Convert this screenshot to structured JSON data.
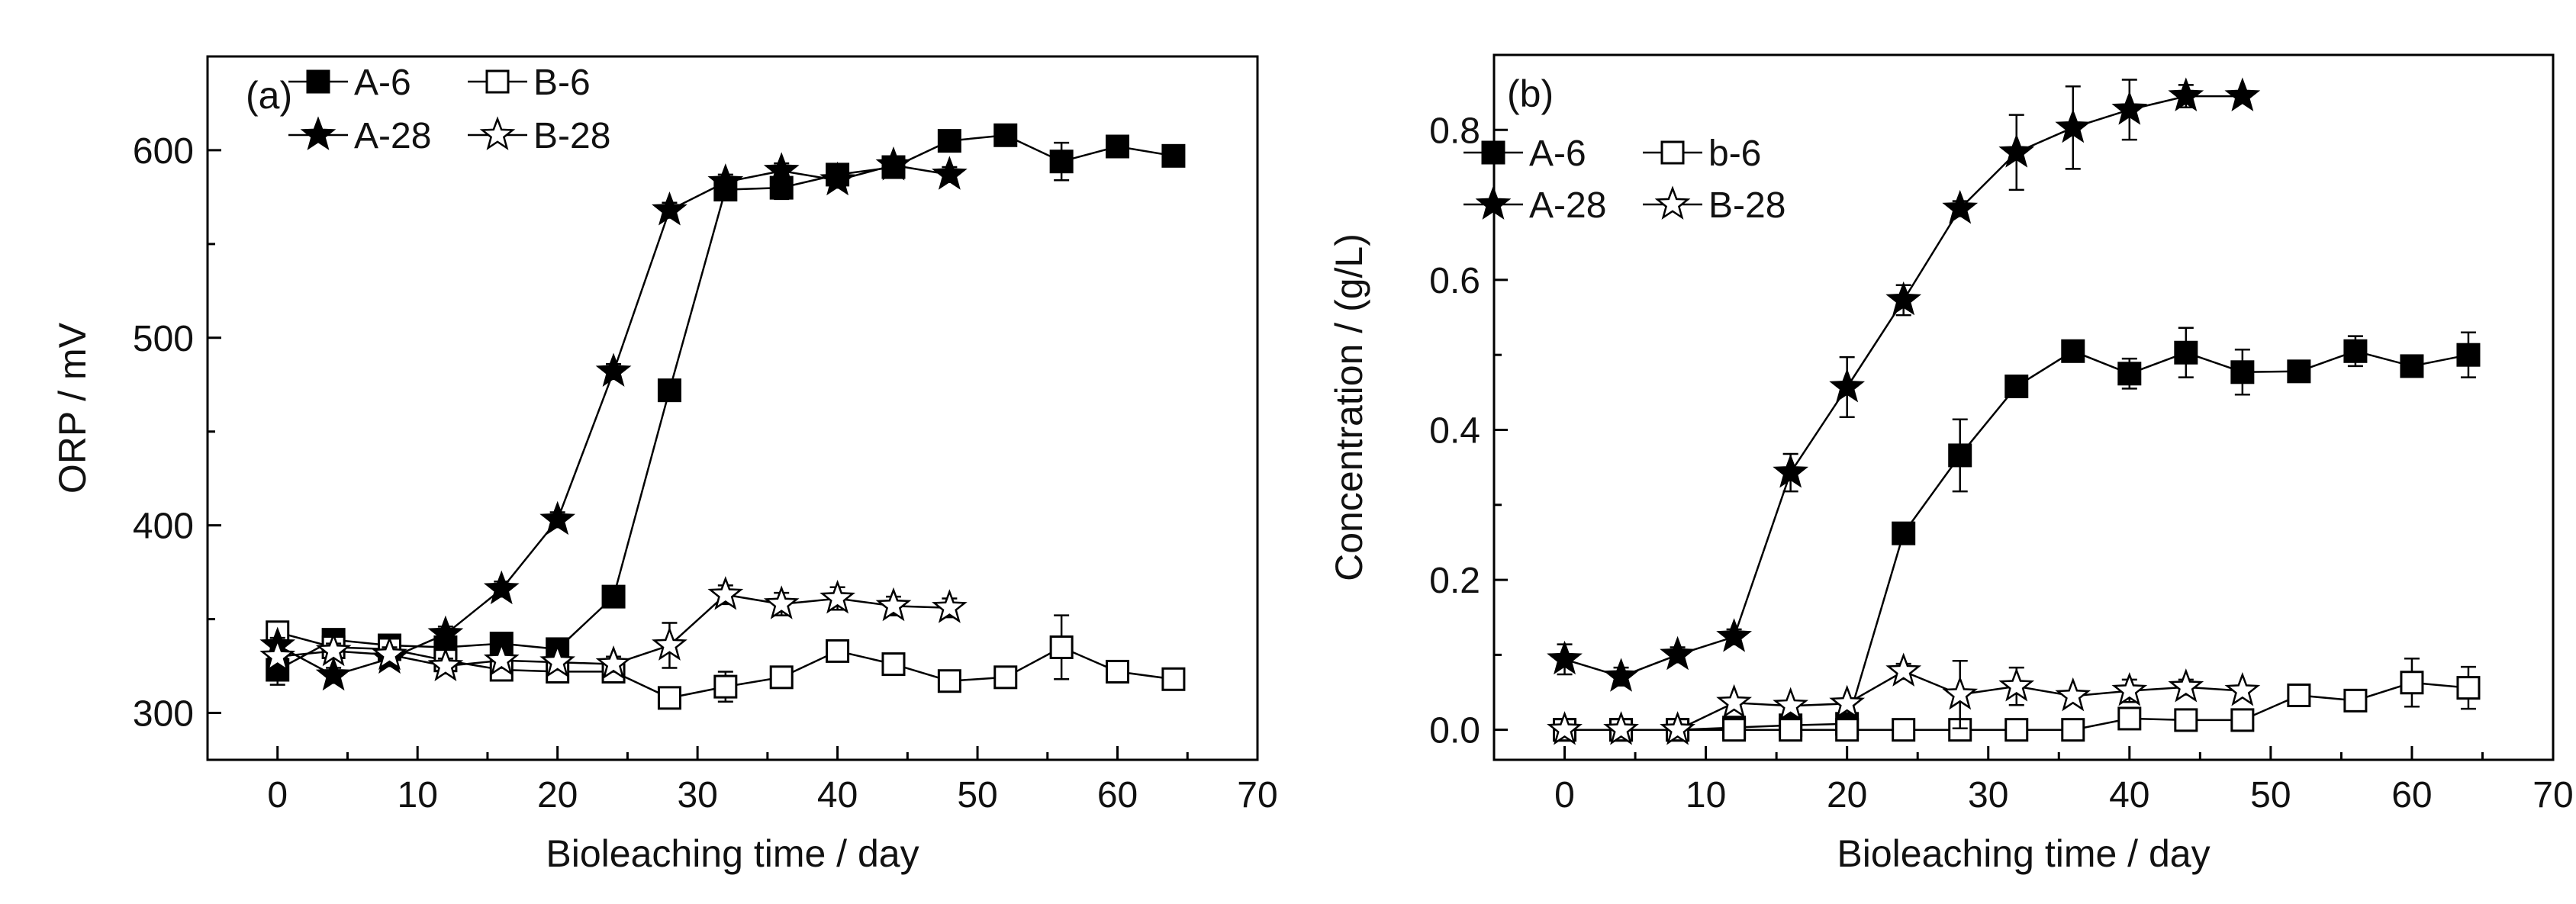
{
  "chart_data": [
    {
      "type": "line",
      "panel_label": "(a)",
      "xlabel": "Bioleaching time / day",
      "ylabel": "ORP / mV",
      "xlim": [
        -5,
        70
      ],
      "ylim": [
        275,
        650
      ],
      "xticks": [
        0,
        10,
        20,
        30,
        40,
        50,
        60,
        70
      ],
      "yticks": [
        300,
        400,
        500,
        600
      ],
      "ytick_labels": [
        "300",
        "400",
        "500",
        "600"
      ],
      "legend": {
        "position": "top-left",
        "rows": [
          [
            "A-6",
            "B-6"
          ],
          [
            "A-28",
            "B-28"
          ]
        ]
      },
      "series": [
        {
          "name": "A-6",
          "marker": "square-filled",
          "x": [
            0,
            4,
            8,
            12,
            16,
            20,
            24,
            28,
            32,
            36,
            40,
            44,
            48,
            52,
            56,
            60,
            64
          ],
          "y": [
            323,
            339,
            336,
            335,
            337,
            334,
            362,
            472,
            579,
            580,
            587,
            591,
            605,
            608,
            594,
            602,
            597
          ],
          "err": [
            8,
            4,
            4,
            4,
            4,
            4,
            4,
            5,
            5,
            6,
            5,
            5,
            4,
            3,
            10,
            4,
            4
          ]
        },
        {
          "name": "B-6",
          "marker": "square-open",
          "x": [
            0,
            4,
            8,
            12,
            16,
            20,
            24,
            28,
            32,
            36,
            40,
            44,
            48,
            52,
            56,
            60,
            64
          ],
          "y": [
            343,
            335,
            334,
            328,
            323,
            322,
            322,
            308,
            314,
            319,
            333,
            326,
            317,
            319,
            335,
            322,
            318
          ],
          "err": [
            4,
            4,
            4,
            4,
            4,
            4,
            4,
            5,
            8,
            4,
            5,
            4,
            3,
            4,
            17,
            5,
            5
          ]
        },
        {
          "name": "A-28",
          "marker": "star-filled",
          "x": [
            0,
            4,
            8,
            12,
            16,
            20,
            24,
            28,
            32,
            36,
            40,
            44,
            48
          ],
          "y": [
            336,
            320,
            329,
            342,
            366,
            403,
            482,
            568,
            583,
            589,
            584,
            592,
            587
          ],
          "err": [
            4,
            4,
            4,
            4,
            4,
            4,
            4,
            4,
            4,
            4,
            4,
            4,
            4
          ]
        },
        {
          "name": "B-28",
          "marker": "star-open",
          "x": [
            0,
            4,
            8,
            12,
            16,
            20,
            24,
            28,
            32,
            36,
            40,
            44,
            48
          ],
          "y": [
            330,
            333,
            331,
            325,
            328,
            327,
            326,
            336,
            363,
            358,
            361,
            357,
            356
          ],
          "err": [
            4,
            4,
            4,
            4,
            4,
            4,
            4,
            12,
            5,
            6,
            6,
            5,
            5
          ]
        }
      ]
    },
    {
      "type": "line",
      "panel_label": "(b)",
      "xlabel": "Bioleaching time / day",
      "ylabel": "Concentration / (g/L)",
      "xlim": [
        -5,
        70
      ],
      "ylim": [
        -0.04,
        0.9
      ],
      "xticks": [
        0,
        10,
        20,
        30,
        40,
        50,
        60,
        70
      ],
      "yticks": [
        0.0,
        0.2,
        0.4,
        0.6,
        0.8
      ],
      "ytick_labels": [
        "0.0",
        "0.2",
        "0.4",
        "0.6",
        "0.8"
      ],
      "legend": {
        "position": "top-left",
        "rows": [
          [
            "A-6",
            "b-6"
          ],
          [
            "A-28",
            "B-28"
          ]
        ]
      },
      "series": [
        {
          "name": "A-6",
          "marker": "square-filled",
          "x": [
            0,
            4,
            8,
            12,
            16,
            20,
            24,
            28,
            32,
            36,
            40,
            44,
            48,
            52,
            56,
            60,
            64
          ],
          "y": [
            0.0,
            0.0,
            0.0,
            0.003,
            0.006,
            0.008,
            0.262,
            0.366,
            0.458,
            0.505,
            0.475,
            0.503,
            0.477,
            0.478,
            0.505,
            0.485,
            0.5
          ],
          "err": [
            0.005,
            0.005,
            0.005,
            0.005,
            0.005,
            0.01,
            0.01,
            0.048,
            0.01,
            0.01,
            0.02,
            0.033,
            0.03,
            0.008,
            0.02,
            0.01,
            0.03
          ]
        },
        {
          "name": "b-6",
          "marker": "square-open",
          "x": [
            0,
            4,
            8,
            12,
            16,
            20,
            24,
            28,
            32,
            36,
            40,
            44,
            48,
            52,
            56,
            60,
            64
          ],
          "y": [
            0.0,
            0.0,
            0.0,
            0.0,
            0.0,
            0.0,
            0.0,
            0.0,
            0.0,
            0.0,
            0.015,
            0.013,
            0.013,
            0.046,
            0.039,
            0.063,
            0.056
          ],
          "err": [
            0.005,
            0.005,
            0.005,
            0.005,
            0.005,
            0.005,
            0.005,
            0.005,
            0.005,
            0.005,
            0.005,
            0.01,
            0.01,
            0.01,
            0.01,
            0.032,
            0.028
          ]
        },
        {
          "name": "A-28",
          "marker": "star-filled",
          "x": [
            0,
            4,
            8,
            12,
            16,
            20,
            24,
            28,
            32,
            36,
            40,
            44,
            48
          ],
          "y": [
            0.094,
            0.071,
            0.1,
            0.124,
            0.343,
            0.457,
            0.573,
            0.695,
            0.77,
            0.803,
            0.827,
            0.845,
            0.845
          ],
          "err": [
            0.02,
            0.012,
            0.01,
            0.01,
            0.025,
            0.04,
            0.02,
            0.01,
            0.05,
            0.055,
            0.04,
            0.015,
            0.005
          ]
        },
        {
          "name": "B-28",
          "marker": "star-open",
          "x": [
            0,
            4,
            8,
            12,
            16,
            20,
            24,
            28,
            32,
            36,
            40,
            44,
            48
          ],
          "y": [
            0.0,
            0.0,
            0.0,
            0.036,
            0.032,
            0.035,
            0.078,
            0.047,
            0.058,
            0.045,
            0.052,
            0.057,
            0.052
          ],
          "err": [
            0.005,
            0.005,
            0.005,
            0.005,
            0.005,
            0.005,
            0.01,
            0.045,
            0.025,
            0.005,
            0.015,
            0.01,
            0.005
          ]
        }
      ]
    }
  ]
}
